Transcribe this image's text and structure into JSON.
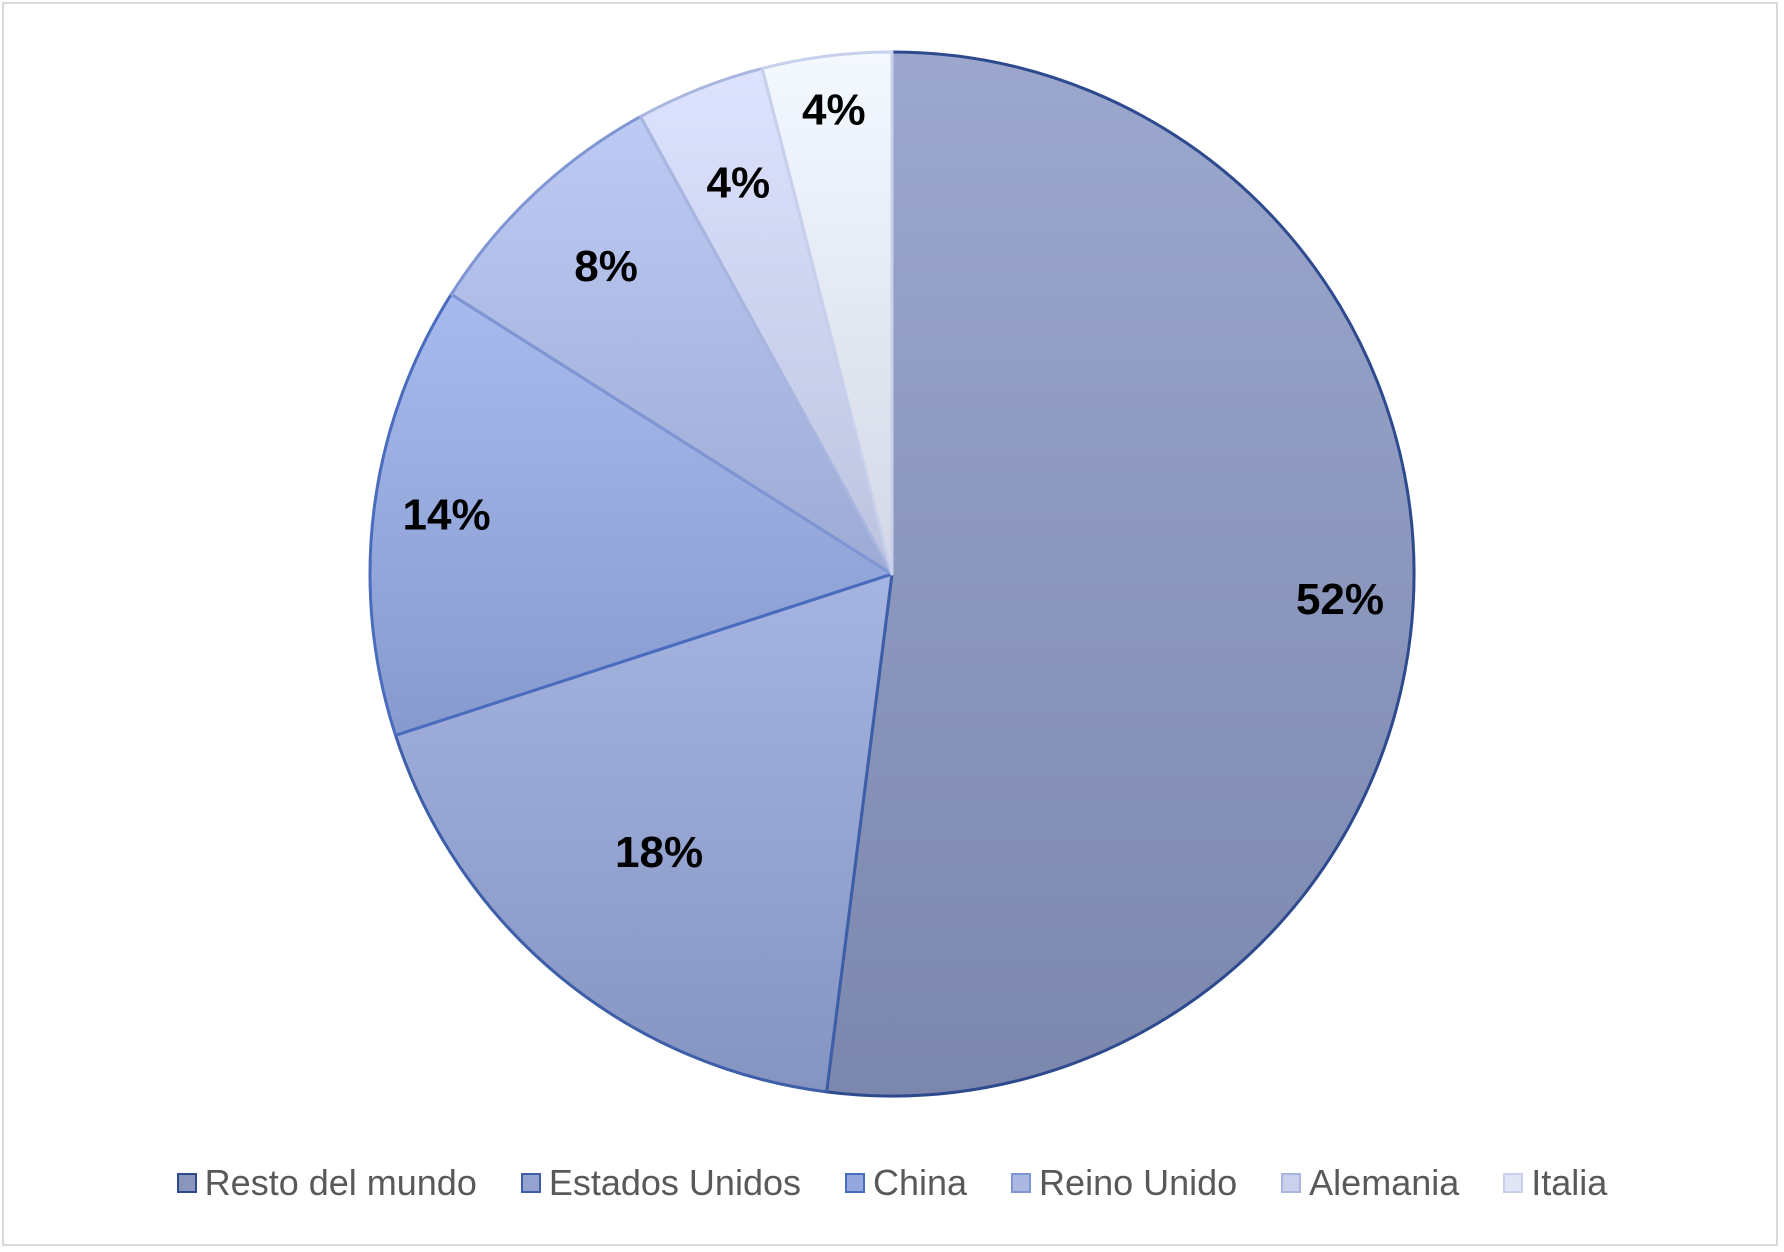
{
  "chart_data": {
    "type": "pie",
    "title": "",
    "categories": [
      "Resto del mundo",
      "Estados Unidos",
      "China",
      "Reino Unido",
      "Alemania",
      "Italia"
    ],
    "values": [
      52,
      18,
      14,
      8,
      4,
      4
    ],
    "data_labels": [
      "52%",
      "18%",
      "14%",
      "8%",
      "4%",
      "4%"
    ],
    "unit": "%",
    "start_angle": "12 o'clock",
    "direction": "clockwise",
    "legend_position": "bottom",
    "colors": [
      "#8a95bb",
      "#93a2cf",
      "#95a8dc",
      "#aab8e2",
      "#cbd1ec",
      "#e2e6f4"
    ],
    "border_colors": [
      "#2e4a8f",
      "#3d5ea8",
      "#4a6cbf",
      "#7f96d4",
      "#a9b6e0",
      "#c7d0ec"
    ]
  }
}
